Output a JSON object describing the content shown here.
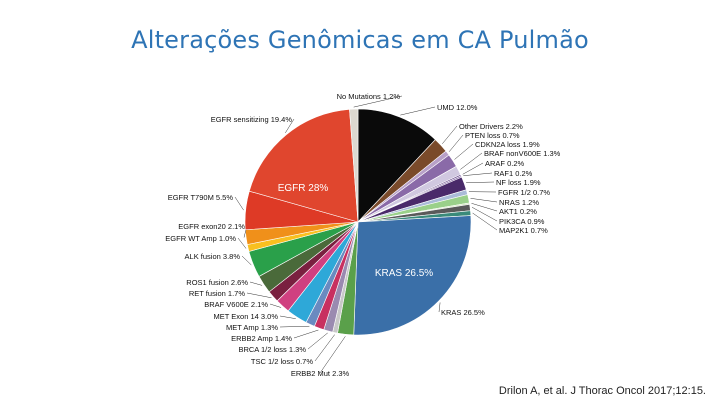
{
  "slide": {
    "title": "Alterações Genômicas em CA Pulmão",
    "citation": "Drilon A, et al. J Thorac Oncol 2017;12:15."
  },
  "chart_data": {
    "type": "pie",
    "title": "",
    "slices": [
      {
        "label": "UMD 12.0%",
        "value": 12.0,
        "color": "#0a0a0a"
      },
      {
        "label": "Other Drivers 2.2%",
        "value": 2.2,
        "color": "#7a4a2a"
      },
      {
        "label": "PTEN loss 0.7%",
        "value": 0.7,
        "color": "#b8a0c8"
      },
      {
        "label": "CDKN2A loss 1.9%",
        "value": 1.9,
        "color": "#8a6aa8"
      },
      {
        "label": "BRAF nonV600E 1.3%",
        "value": 1.3,
        "color": "#d0c8e0"
      },
      {
        "label": "ARAF 0.2%",
        "value": 0.2,
        "color": "#5a3a80"
      },
      {
        "label": "RAF1 0.2%",
        "value": 0.2,
        "color": "#7a5aa0"
      },
      {
        "label": "NF loss 1.9%",
        "value": 1.9,
        "color": "#4a2a6a"
      },
      {
        "label": "FGFR 1/2 0.7%",
        "value": 0.7,
        "color": "#aabbd8"
      },
      {
        "label": "NRAS 1.2%",
        "value": 1.2,
        "color": "#9ad08a"
      },
      {
        "label": "AKT1 0.2%",
        "value": 0.2,
        "color": "#c8e0b0"
      },
      {
        "label": "PIK3CA 0.9%",
        "value": 0.9,
        "color": "#5a5a5a"
      },
      {
        "label": "MAP2K1 0.7%",
        "value": 0.7,
        "color": "#3a8a7a"
      },
      {
        "label": "KRAS 26.5%",
        "value": 26.5,
        "color": "#3a6fa8"
      },
      {
        "label": "ERBB2 Mut 2.3%",
        "value": 2.3,
        "color": "#5aa04a"
      },
      {
        "label": "TSC 1/2 loss 0.7%",
        "value": 0.7,
        "color": "#c8c8c8"
      },
      {
        "label": "BRCA 1/2 loss 1.3%",
        "value": 1.3,
        "color": "#9a8ab0"
      },
      {
        "label": "ERBB2 Amp 1.4%",
        "value": 1.4,
        "color": "#c83060"
      },
      {
        "label": "MET Amp 1.3%",
        "value": 1.3,
        "color": "#6a8ac0"
      },
      {
        "label": "MET Exon 14 3.0%",
        "value": 3.0,
        "color": "#2ea8d8"
      },
      {
        "label": "BRAF V600E 2.1%",
        "value": 2.1,
        "color": "#d04080"
      },
      {
        "label": "RET fusion 1.7%",
        "value": 1.7,
        "color": "#7a2040"
      },
      {
        "label": "ROS1 fusion 2.6%",
        "value": 2.6,
        "color": "#4a6a3a"
      },
      {
        "label": "ALK fusion 3.8%",
        "value": 3.8,
        "color": "#2aa04a"
      },
      {
        "label": "EGFR WT Amp 1.0%",
        "value": 1.0,
        "color": "#f8c020"
      },
      {
        "label": "EGFR exon20 2.1%",
        "value": 2.1,
        "color": "#f0901a"
      },
      {
        "label": "EGFR T790M 5.5%",
        "value": 5.5,
        "color": "#de3a26"
      },
      {
        "label": "EGFR sensitizing 19.4%",
        "value": 19.4,
        "color": "#e0462e"
      },
      {
        "label": "No Mutations 1.2%",
        "value": 1.2,
        "color": "#dcd8d0"
      }
    ],
    "inner_labels": [
      "EGFR 28%",
      "KRAS 26.5%"
    ]
  }
}
